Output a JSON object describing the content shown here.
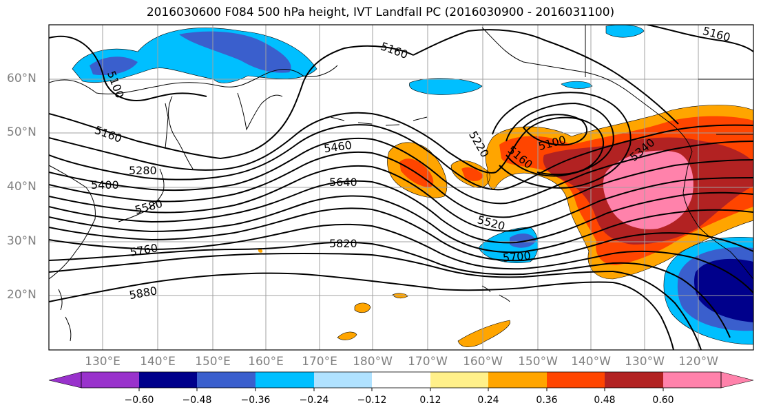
{
  "title": "2016030600 F084 500 hPa height, IVT Landfall PC (2016030900 - 2016031100)",
  "lat_labels": [
    "60°N",
    "50°N",
    "40°N",
    "30°N",
    "20°N"
  ],
  "lon_labels": [
    "130°E",
    "140°E",
    "150°E",
    "160°E",
    "170°E",
    "180°W",
    "170°W",
    "160°W",
    "150°W",
    "140°W",
    "130°W",
    "120°W"
  ],
  "contour_labels": [
    "5160",
    "5100",
    "5160",
    "5160",
    "5460",
    "5220",
    "5100",
    "5160",
    "5340",
    "5280",
    "5400",
    "5640",
    "5580",
    "5520",
    "5760",
    "5820",
    "5700",
    "5880"
  ],
  "colorbar": {
    "ticks": [
      "−0.60",
      "−0.48",
      "−0.36",
      "−0.24",
      "−0.12",
      "0.12",
      "0.24",
      "0.36",
      "0.48",
      "0.60"
    ],
    "colors": [
      "#9932cc",
      "#00008b",
      "#3a5fcd",
      "#00bfff",
      "#b0e2ff",
      "#ffffff",
      "#fff08a",
      "#ffa500",
      "#ff4500",
      "#b22222",
      "#ff82ab"
    ]
  },
  "colors": {
    "grid": "#a0a0a0",
    "land": "#000000",
    "contour": "#000000"
  }
}
